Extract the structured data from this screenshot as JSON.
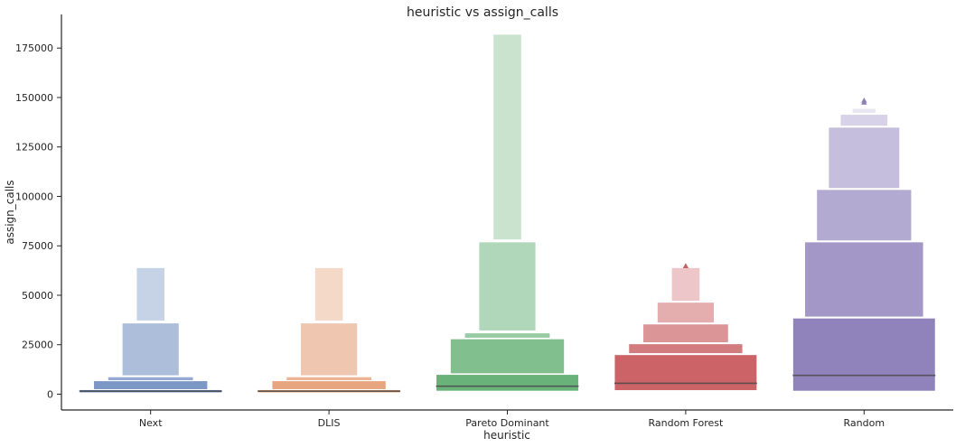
{
  "chart_data": {
    "type": "boxen",
    "title": "heuristic vs assign_calls",
    "xlabel": "heuristic",
    "ylabel": "assign_calls",
    "ylim": [
      -8000,
      192000
    ],
    "yticks": [
      0,
      25000,
      50000,
      75000,
      100000,
      125000,
      150000,
      175000
    ],
    "ytick_labels": [
      "0",
      "25000",
      "50000",
      "75000",
      "100000",
      "125000",
      "150000",
      "175000"
    ],
    "grid": false,
    "categories": [
      "Next",
      "DLIS",
      "Pareto Dominant",
      "Random Forest",
      "Random"
    ],
    "series": [
      {
        "category": "Next",
        "color": "#4c72b0",
        "median": 1500,
        "boxes": [
          {
            "low": 700,
            "high": 2300
          },
          {
            "low": 2300,
            "high": 6800
          },
          {
            "low": 6800,
            "high": 8800
          },
          {
            "low": 9300,
            "high": 36000
          },
          {
            "low": 37000,
            "high": 64000
          }
        ],
        "outliers": []
      },
      {
        "category": "DLIS",
        "color": "#dd8452",
        "median": 1500,
        "boxes": [
          {
            "low": 700,
            "high": 2300
          },
          {
            "low": 2300,
            "high": 6800
          },
          {
            "low": 6800,
            "high": 8800
          },
          {
            "low": 9300,
            "high": 36000
          },
          {
            "low": 37000,
            "high": 64000
          }
        ],
        "outliers": []
      },
      {
        "category": "Pareto Dominant",
        "color": "#55a868",
        "median": 4000,
        "boxes": [
          {
            "low": 1500,
            "high": 10000
          },
          {
            "low": 10300,
            "high": 28000
          },
          {
            "low": 28300,
            "high": 31000
          },
          {
            "low": 32000,
            "high": 77000
          },
          {
            "low": 78000,
            "high": 182000
          }
        ],
        "outliers": []
      },
      {
        "category": "Random Forest",
        "color": "#c44e52",
        "median": 5500,
        "boxes": [
          {
            "low": 1800,
            "high": 20000
          },
          {
            "low": 20500,
            "high": 25500
          },
          {
            "low": 26000,
            "high": 35500
          },
          {
            "low": 36000,
            "high": 46500
          },
          {
            "low": 47000,
            "high": 64000
          }
        ],
        "outliers": [
          64800
        ]
      },
      {
        "category": "Random",
        "color": "#8172b3",
        "median": 9500,
        "boxes": [
          {
            "low": 1500,
            "high": 38500
          },
          {
            "low": 39000,
            "high": 77000
          },
          {
            "low": 77500,
            "high": 103500
          },
          {
            "low": 104000,
            "high": 135000
          },
          {
            "low": 135500,
            "high": 141500
          },
          {
            "low": 142000,
            "high": 144500
          }
        ],
        "outliers": [
          147500,
          148500
        ]
      }
    ]
  }
}
